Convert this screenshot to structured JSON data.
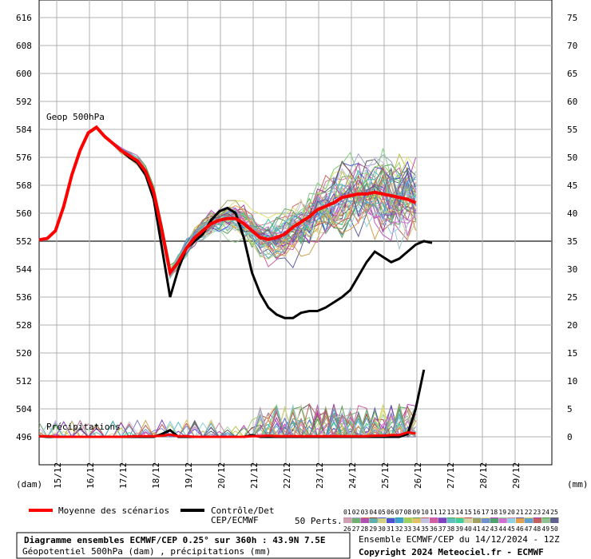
{
  "chart_data": {
    "type": "line",
    "left_axis_label": "(dam)",
    "right_axis_label": "(mm)",
    "panel_label_top": "Geop 500hPa",
    "panel_label_bottom": "Précipitations",
    "left_ticks": [
      616,
      608,
      600,
      592,
      584,
      576,
      568,
      560,
      552,
      544,
      536,
      528,
      520,
      512,
      504,
      496
    ],
    "right_ticks": [
      75,
      70,
      65,
      60,
      55,
      50,
      45,
      40,
      35,
      30,
      25,
      20,
      15,
      10,
      5,
      0
    ],
    "date_labels": [
      "15/12",
      "16/12",
      "17/12",
      "18/12",
      "19/12",
      "20/12",
      "21/12",
      "22/12",
      "23/12",
      "24/12",
      "25/12",
      "26/12",
      "27/12",
      "28/12",
      "29/12"
    ],
    "ylim": [
      496,
      616
    ],
    "reference_line": 552,
    "x_hours": [
      0,
      6,
      12,
      18,
      24,
      30,
      36,
      42,
      48,
      54,
      60,
      66,
      72,
      78,
      84,
      90,
      96,
      102,
      108,
      114,
      120,
      126,
      132,
      138,
      144,
      150,
      156,
      162,
      168,
      174,
      180,
      186,
      192,
      198,
      204,
      210,
      216,
      222,
      228,
      234,
      240,
      246,
      252,
      258,
      264,
      270,
      276,
      282,
      288,
      294,
      300,
      306,
      312,
      318,
      324,
      330,
      336,
      342,
      348,
      354,
      360
    ],
    "series": [
      {
        "name": "Moyenne des scénarios",
        "color": "#ff0000",
        "values": [
          552.4,
          552.8,
          555,
          562,
          571,
          578,
          583,
          584.6,
          582,
          580,
          578,
          576.5,
          575,
          572,
          566,
          555,
          543,
          546,
          550,
          553,
          555,
          557,
          558,
          558.5,
          558.5,
          557,
          555,
          553,
          552.5,
          553,
          554,
          556,
          557.5,
          559,
          561,
          562,
          563,
          564.5,
          565,
          565.5,
          565.5,
          566,
          565.5,
          565,
          564.5,
          564,
          563
        ]
      },
      {
        "name": "Contrôle/Det CEP/ECMWF",
        "color": "#000000",
        "values": [
          552.4,
          552.8,
          555,
          562,
          571,
          578,
          583,
          584.6,
          582,
          580,
          578,
          576,
          574.5,
          571,
          564,
          550,
          536,
          544,
          550,
          552,
          554,
          558,
          560.5,
          561.5,
          560,
          553,
          543,
          537,
          533,
          531,
          530,
          530,
          531.5,
          532,
          532,
          533,
          534.5,
          536,
          538,
          542,
          546,
          549,
          547.5,
          546,
          547,
          549,
          551,
          552,
          551.5
        ]
      }
    ],
    "precip": {
      "mean": [
        0.05,
        0.1,
        0,
        0,
        0,
        0,
        0,
        0,
        0,
        0,
        0,
        0.05,
        0.1,
        0.1,
        0.1,
        0.2,
        0.4,
        0.1,
        0.1,
        0,
        0,
        0,
        0,
        0,
        0,
        0,
        0.1,
        0.1,
        0.2,
        0.1,
        0.1,
        0.1,
        0.1,
        0.1,
        0.1,
        0.1,
        0.1,
        0.1,
        0.1,
        0.1,
        0.1,
        0.2,
        0.2,
        0.3,
        0.3,
        0.8,
        0.6
      ],
      "control": [
        0.1,
        0,
        0,
        0,
        0,
        0,
        0,
        0,
        0,
        0,
        0,
        0,
        0,
        0,
        0,
        0.5,
        1.2,
        0,
        0,
        0,
        0,
        0,
        0,
        0,
        0,
        0,
        0.3,
        0,
        0,
        0,
        0,
        0,
        0,
        0,
        0,
        0,
        0,
        0,
        0,
        0,
        0,
        0,
        0,
        0,
        0,
        0.5,
        5,
        12
      ]
    },
    "legend": {
      "mean_label": "Moyenne des scénarios",
      "control_label_1": "Contrôle/Det",
      "control_label_2": "CEP/ECMWF",
      "perts_label": "50 Perts.",
      "member_ids_row1": [
        "01",
        "02",
        "03",
        "04",
        "05",
        "06",
        "07",
        "08",
        "09",
        "10",
        "11",
        "12",
        "13",
        "14",
        "15",
        "16",
        "17",
        "18",
        "19",
        "20",
        "21",
        "22",
        "23",
        "24",
        "25"
      ],
      "member_ids_row2": [
        "26",
        "27",
        "28",
        "29",
        "30",
        "31",
        "32",
        "33",
        "34",
        "35",
        "36",
        "37",
        "38",
        "39",
        "40",
        "41",
        "42",
        "43",
        "44",
        "45",
        "46",
        "47",
        "48",
        "49",
        "50"
      ],
      "member_colors_row1": [
        "#c090a0",
        "#a0a0d0",
        "#d07050",
        "#904020",
        "#5060d0",
        "#a0d0a0",
        "#30a0a0",
        "#c0c050",
        "#60a060",
        "#d06060",
        "#c060c0",
        "#8080c0",
        "#50b050",
        "#d0a050",
        "#c05050",
        "#a0c0d0",
        "#e0e070",
        "#c040c0",
        "#80d080",
        "#d080a0",
        "#6060a0",
        "#d0d060",
        "#a040a0",
        "#50a050",
        "#606060"
      ],
      "member_colors_row2": [
        "#d0a0b0",
        "#70b070",
        "#b050b0",
        "#60b0b0",
        "#d0d080",
        "#5050d0",
        "#40a0d0",
        "#a0d060",
        "#e0c060",
        "#c0c0e0",
        "#d060a0",
        "#8040c0",
        "#60c0c0",
        "#40d0a0",
        "#d0d0a0",
        "#a0a060",
        "#7090d0",
        "#50a070",
        "#d070d0",
        "#90d0e0",
        "#e0a050",
        "#60a0d0",
        "#c06060",
        "#90c090",
        "#606090"
      ]
    },
    "footer": {
      "title": "Diagramme ensembles ECMWF/CEP 0.25° sur 360h : 43.9N 7.5E",
      "subtitle": "Géopotentiel 500hPa (dam) , précipitations (mm)",
      "run": "Ensemble ECMWF/CEP du 14/12/2024 - 12Z",
      "copyright": "Copyright 2024 Meteociel.fr - ECMWF"
    }
  }
}
